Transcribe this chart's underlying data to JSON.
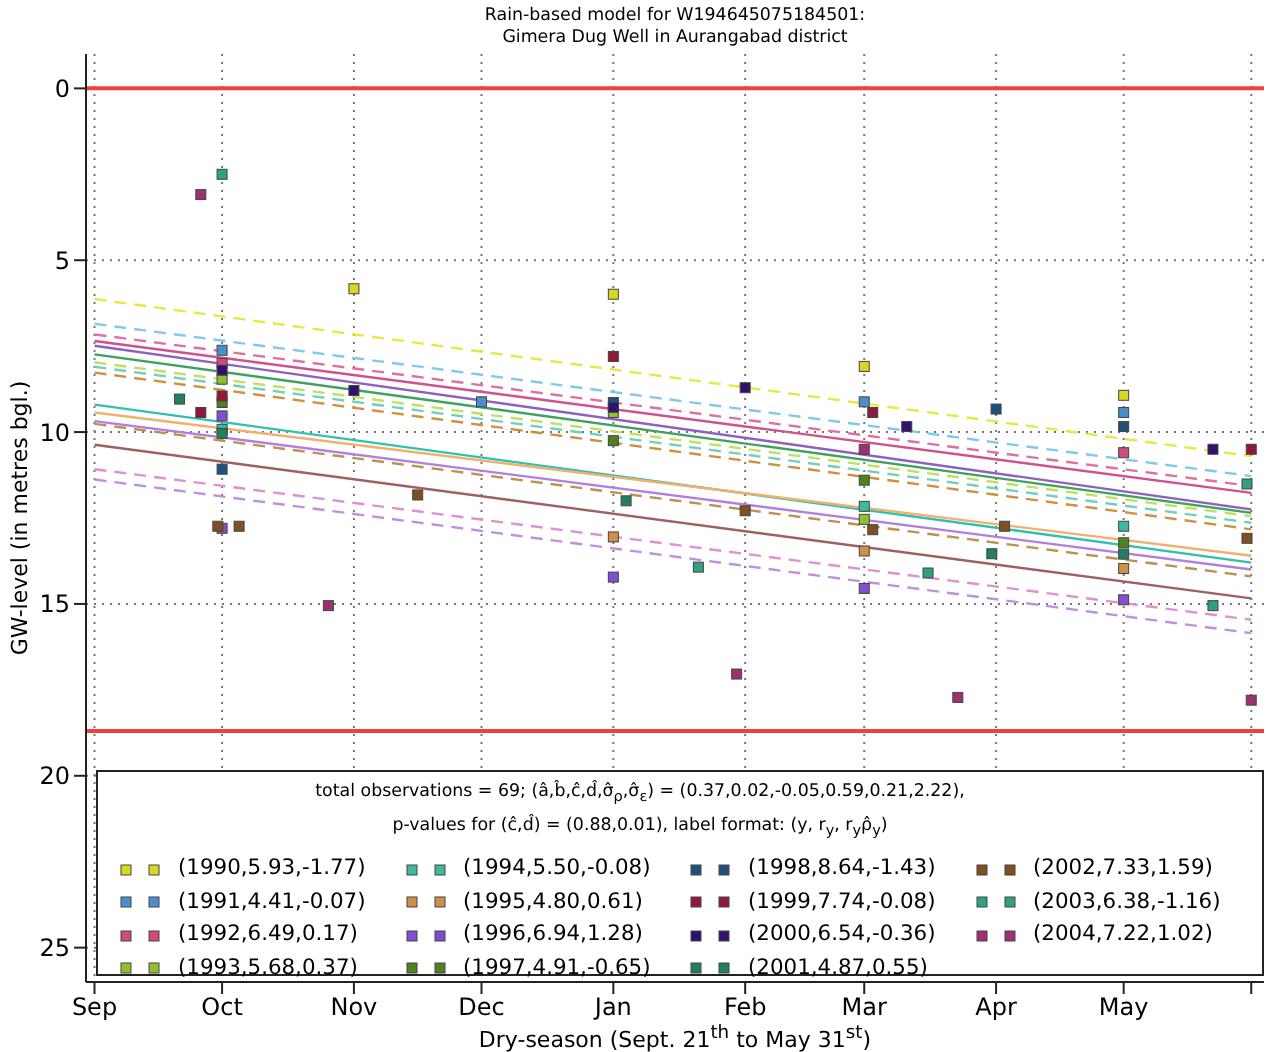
{
  "chart_data": {
    "type": "scatter",
    "title": "Rain-based model for W194645075184501:\nGimera Dug Well in Aurangabad district",
    "xlabel": "Dry-season (Sept. 21$^{th}$  to May 31$^{st}$)",
    "ylabel": "GW-level (in metres bgl.)",
    "xlim": [
      "2000-08-30",
      "2001-06-03"
    ],
    "xticks": [
      {
        "value": "2000-09-01",
        "label": "Sep"
      },
      {
        "value": "2000-10-01",
        "label": "Oct"
      },
      {
        "value": "2000-11-01",
        "label": "Nov"
      },
      {
        "value": "2000-12-01",
        "label": "Dec"
      },
      {
        "value": "2001-01-01",
        "label": "Jan"
      },
      {
        "value": "2001-02-01",
        "label": "Feb"
      },
      {
        "value": "2001-03-01",
        "label": "Mar"
      },
      {
        "value": "2001-04-01",
        "label": "Apr"
      },
      {
        "value": "2001-05-01",
        "label": "May"
      },
      {
        "value": "2001-05-31",
        "label": null
      }
    ],
    "ylim": [
      26,
      -1
    ],
    "yticks": [
      0,
      5,
      10,
      15,
      20,
      25
    ],
    "grid": true,
    "legend": "bottom",
    "marker": "square",
    "annotations": [
      "total observations = 69;    (â,b̂,ĉ,d̂,σ̂$_{ρ}$,σ̂$_{ε}$) = (0.37,0.02,-0.05,0.59,0.21,2.22),",
      "p-values for (ĉ,d̂) = (0.88,0.01),   label format: (y, r$_{y}$, r$_{y}$ρ̂$_{y}$)"
    ],
    "ref_lines": [
      {
        "axis": "y",
        "value": 0,
        "color": "#f04040"
      },
      {
        "axis": "y",
        "value": 18.7,
        "color": "#f04040"
      }
    ],
    "series": [
      {
        "name": "(1990,5.93,-1.77)",
        "color": "#d8d820",
        "x": [
          "2000-11-01",
          "2001-01-01",
          "2001-03-01",
          "2001-05-01"
        ],
        "values": [
          5.83,
          5.99,
          8.09,
          8.93
        ]
      },
      {
        "name": "(1991,4.41,-0.07)",
        "color": "#4a8ed0",
        "x": [
          "2000-10-01",
          "2000-12-01",
          "2001-03-01",
          "2001-05-01"
        ],
        "values": [
          7.62,
          9.12,
          9.12,
          9.43
        ]
      },
      {
        "name": "(1992,6.49,0.17)",
        "color": "#d04a7a",
        "x": [
          "2000-10-01",
          "2001-05-01"
        ],
        "values": [
          8.0,
          10.6
        ]
      },
      {
        "name": "(1993,5.68,0.37)",
        "color": "#90c030",
        "x": [
          "2000-10-01",
          "2001-01-01",
          "2001-03-01"
        ],
        "values": [
          8.46,
          9.43,
          12.54
        ]
      },
      {
        "name": "(1994,5.50,-0.08)",
        "color": "#40b8a0",
        "x": [
          "2000-10-01",
          "2001-03-01",
          "2001-05-01"
        ],
        "values": [
          9.92,
          12.16,
          12.74
        ]
      },
      {
        "name": "(1995,4.80,0.61)",
        "color": "#d0904a",
        "x": [
          "2001-01-01",
          "2001-03-01",
          "2001-05-01"
        ],
        "values": [
          13.05,
          13.46,
          13.97
        ]
      },
      {
        "name": "(1996,6.94,1.28)",
        "color": "#8050d0",
        "x": [
          "2000-10-01",
          "2000-10-01",
          "2001-01-01",
          "2001-03-01",
          "2001-05-01"
        ],
        "values": [
          9.53,
          12.8,
          14.22,
          14.55,
          14.88
        ]
      },
      {
        "name": "(1997,4.91,-0.65)",
        "color": "#508020",
        "x": [
          "2000-10-01",
          "2001-01-01",
          "2001-03-01",
          "2001-05-01"
        ],
        "values": [
          9.14,
          10.25,
          11.4,
          13.22
        ]
      },
      {
        "name": "(1998,8.64,-1.43)",
        "color": "#205080",
        "x": [
          "2000-10-01",
          "2001-01-01",
          "2001-04-01",
          "2001-05-01"
        ],
        "values": [
          11.08,
          9.14,
          9.33,
          9.84
        ]
      },
      {
        "name": "(1999,7.74,-0.08)",
        "color": "#901838",
        "x": [
          "2000-09-26",
          "2000-10-01",
          "2001-01-01",
          "2001-03-03",
          "2001-05-31"
        ],
        "values": [
          9.43,
          8.95,
          7.8,
          9.43,
          10.5
        ]
      },
      {
        "name": "(2000,6.54,-0.36)",
        "color": "#301070",
        "x": [
          "2000-10-01",
          "2000-11-01",
          "2001-01-01",
          "2001-02-01",
          "2001-03-11",
          "2001-05-22"
        ],
        "values": [
          8.2,
          8.79,
          9.28,
          8.71,
          9.84,
          10.5
        ]
      },
      {
        "name": "(2001,4.87,0.55)",
        "color": "#208060",
        "x": [
          "2000-09-21",
          "2000-10-01",
          "2001-01-04",
          "2001-03-31",
          "2001-05-01"
        ],
        "values": [
          9.04,
          10.04,
          12.0,
          13.54,
          13.55
        ]
      },
      {
        "name": "(2002,7.33,1.59)",
        "color": "#805020",
        "x": [
          "2000-09-30",
          "2000-10-05",
          "2000-11-16",
          "2001-02-01",
          "2001-03-03",
          "2001-04-03",
          "2001-05-30"
        ],
        "values": [
          12.74,
          12.74,
          11.83,
          12.29,
          12.84,
          12.74,
          13.09
        ]
      },
      {
        "name": "(2003,6.38,-1.16)",
        "color": "#30a080",
        "x": [
          "2000-10-01",
          "2001-01-21",
          "2001-03-16",
          "2001-05-22",
          "2001-05-30"
        ],
        "values": [
          2.5,
          13.93,
          14.1,
          15.05,
          11.51
        ]
      },
      {
        "name": "(2004,7.22,1.02)",
        "color": "#a03070",
        "x": [
          "2000-09-26",
          "2000-10-26",
          "2001-01-30",
          "2001-03-01",
          "2001-03-23",
          "2001-05-31"
        ],
        "values": [
          3.09,
          15.05,
          17.04,
          10.5,
          17.72,
          17.8
        ]
      },
      {
        "type": "line",
        "marker": "none",
        "color": "#e8e840",
        "line_style": "dashed",
        "x": [
          "2000-09-01",
          "2001-05-31"
        ],
        "values": [
          6.13,
          10.7
        ]
      },
      {
        "type": "line",
        "marker": "none",
        "color": "#80c8f0",
        "line_style": "dashed",
        "x": [
          "2000-09-01",
          "2001-05-31"
        ],
        "values": [
          6.85,
          11.28
        ]
      },
      {
        "type": "line",
        "marker": "none",
        "color": "#e070a0",
        "line_style": "dashed",
        "x": [
          "2000-09-01",
          "2001-05-31"
        ],
        "values": [
          7.16,
          11.57
        ]
      },
      {
        "type": "line",
        "marker": "none",
        "color": "#d05090",
        "line_style": "solid",
        "x": [
          "2000-09-01",
          "2001-05-31"
        ],
        "values": [
          7.35,
          11.77
        ]
      },
      {
        "type": "line",
        "marker": "none",
        "color": "#9060c0",
        "line_style": "solid",
        "x": [
          "2000-09-01",
          "2001-05-31"
        ],
        "values": [
          7.49,
          12.25
        ]
      },
      {
        "type": "line",
        "marker": "none",
        "color": "#40a060",
        "line_style": "solid",
        "x": [
          "2000-09-01",
          "2001-05-31"
        ],
        "values": [
          7.74,
          12.35
        ]
      },
      {
        "type": "line",
        "marker": "none",
        "color": "#c0e060",
        "line_style": "dashed",
        "x": [
          "2000-09-01",
          "2001-05-31"
        ],
        "values": [
          7.97,
          12.45
        ]
      },
      {
        "type": "line",
        "marker": "none",
        "color": "#70d0c0",
        "line_style": "dashed",
        "x": [
          "2000-09-01",
          "2001-05-31"
        ],
        "values": [
          8.1,
          12.64
        ]
      },
      {
        "type": "line",
        "marker": "none",
        "color": "#d09040",
        "line_style": "dashed",
        "x": [
          "2000-09-01",
          "2001-05-31"
        ],
        "values": [
          8.27,
          12.83
        ]
      },
      {
        "type": "line",
        "marker": "none",
        "color": "#30c0b0",
        "line_style": "solid",
        "x": [
          "2000-09-01",
          "2001-05-31"
        ],
        "values": [
          9.2,
          13.8
        ]
      },
      {
        "type": "line",
        "marker": "none",
        "color": "#f0b070",
        "line_style": "solid",
        "x": [
          "2000-09-01",
          "2001-05-31"
        ],
        "values": [
          9.43,
          13.6
        ]
      },
      {
        "type": "line",
        "marker": "none",
        "color": "#b080e0",
        "line_style": "solid",
        "x": [
          "2000-09-01",
          "2001-05-31"
        ],
        "values": [
          9.68,
          14.0
        ]
      },
      {
        "type": "line",
        "marker": "none",
        "color": "#c09050",
        "line_style": "dashed",
        "x": [
          "2000-09-01",
          "2001-05-31"
        ],
        "values": [
          9.76,
          14.2
        ]
      },
      {
        "type": "line",
        "marker": "none",
        "color": "#a06060",
        "line_style": "solid",
        "x": [
          "2000-09-01",
          "2001-05-31"
        ],
        "values": [
          10.37,
          14.84
        ]
      },
      {
        "type": "line",
        "marker": "none",
        "color": "#e090d0",
        "line_style": "dashed",
        "x": [
          "2000-09-01",
          "2001-05-31"
        ],
        "values": [
          11.08,
          15.46
        ]
      },
      {
        "type": "line",
        "marker": "none",
        "color": "#c090e0",
        "line_style": "dashed",
        "x": [
          "2000-09-01",
          "2001-05-31"
        ],
        "values": [
          11.38,
          15.85
        ]
      }
    ]
  }
}
